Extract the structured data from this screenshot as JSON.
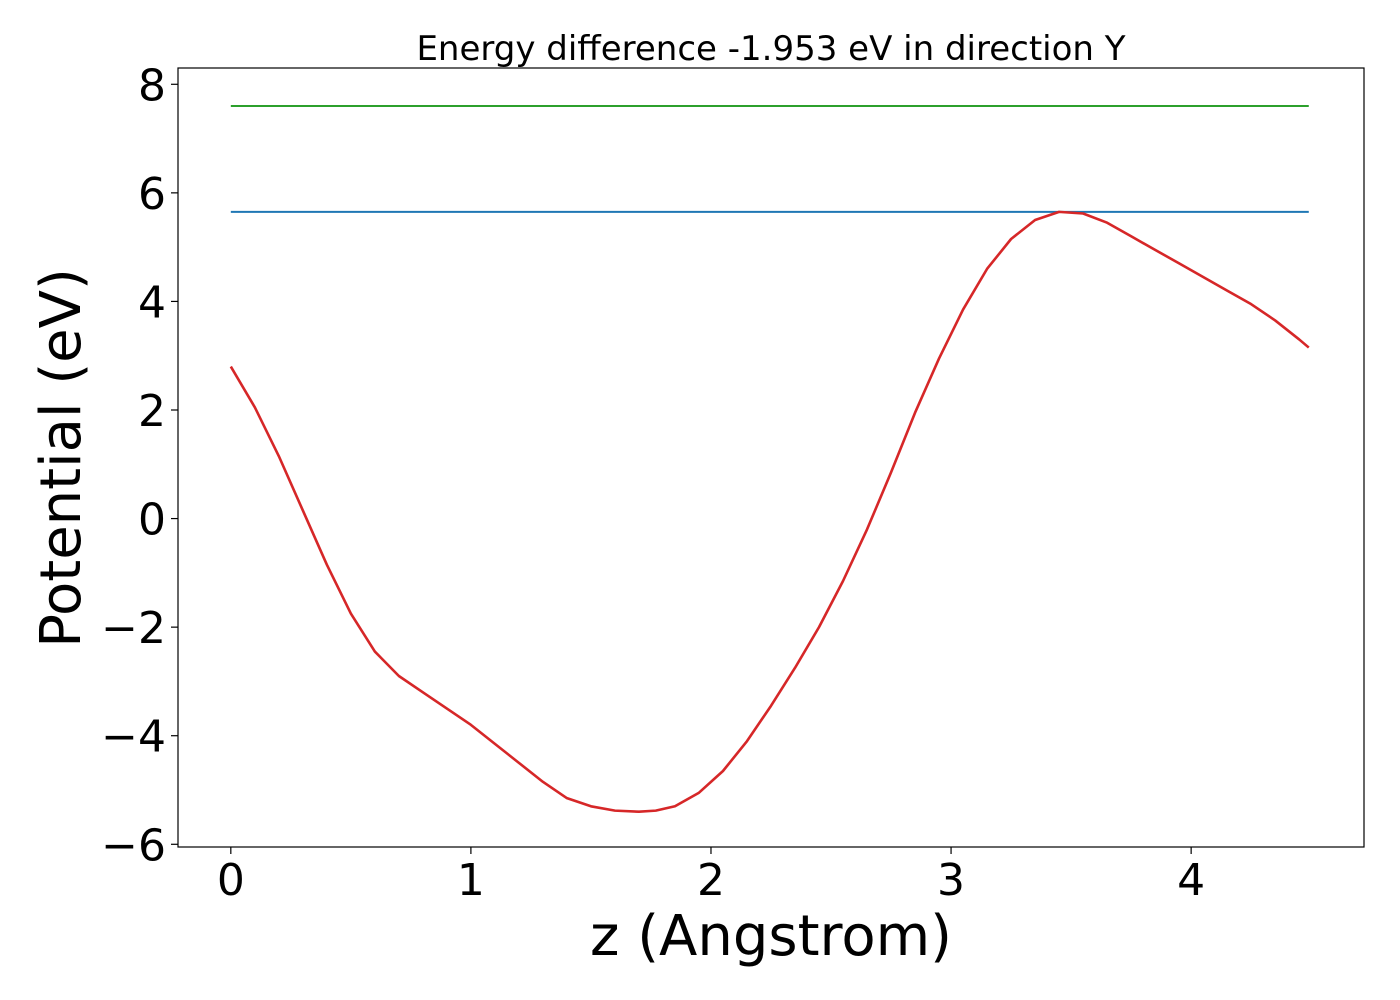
{
  "chart_data": {
    "type": "line",
    "title": "Energy difference -1.953 eV in direction Y",
    "xlabel": "z (Angstrom)",
    "ylabel": "Potential (eV)",
    "xlim": [
      -0.22,
      4.72
    ],
    "ylim": [
      -6.05,
      8.3
    ],
    "xticks": [
      0,
      1,
      2,
      3,
      4
    ],
    "xtick_labels": [
      "0",
      "1",
      "2",
      "3",
      "4"
    ],
    "yticks": [
      -6,
      -4,
      -2,
      0,
      2,
      4,
      6,
      8
    ],
    "ytick_labels": [
      "−6",
      "−4",
      "−2",
      "0",
      "2",
      "4",
      "6",
      "8"
    ],
    "grid": false,
    "series": [
      {
        "color": "#2ca02c",
        "x": [
          0,
          4.49
        ],
        "y": [
          7.6,
          7.6
        ]
      },
      {
        "color": "#1f77b4",
        "x": [
          0,
          4.49
        ],
        "y": [
          5.65,
          5.65
        ]
      },
      {
        "color": "#d62728",
        "x": [
          0,
          0.1,
          0.2,
          0.3,
          0.4,
          0.5,
          0.6,
          0.7,
          0.8,
          0.9,
          1.0,
          1.1,
          1.2,
          1.3,
          1.4,
          1.5,
          1.6,
          1.7,
          1.77,
          1.85,
          1.95,
          2.05,
          2.15,
          2.25,
          2.35,
          2.45,
          2.55,
          2.65,
          2.75,
          2.85,
          2.95,
          3.05,
          3.15,
          3.25,
          3.35,
          3.45,
          3.55,
          3.65,
          3.75,
          3.85,
          3.95,
          4.05,
          4.15,
          4.25,
          4.35,
          4.45,
          4.49
        ],
        "y": [
          2.8,
          2.05,
          1.15,
          0.15,
          -0.85,
          -1.75,
          -2.45,
          -2.9,
          -3.2,
          -3.5,
          -3.8,
          -4.15,
          -4.5,
          -4.85,
          -5.15,
          -5.3,
          -5.38,
          -5.4,
          -5.38,
          -5.3,
          -5.05,
          -4.65,
          -4.1,
          -3.45,
          -2.75,
          -2.0,
          -1.15,
          -0.2,
          0.85,
          1.95,
          2.95,
          3.85,
          4.6,
          5.15,
          5.5,
          5.65,
          5.62,
          5.45,
          5.2,
          4.95,
          4.7,
          4.45,
          4.2,
          3.95,
          3.65,
          3.3,
          3.15
        ]
      }
    ]
  }
}
